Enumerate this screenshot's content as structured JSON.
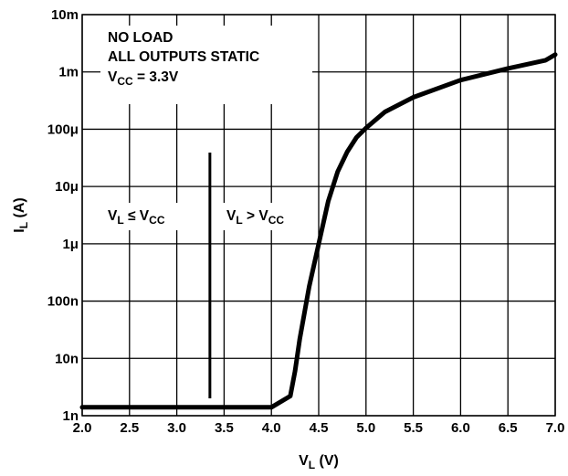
{
  "chart_data": {
    "type": "line",
    "title": "",
    "xlabel": {
      "main": "V",
      "sub": "L",
      "tail": " (V)"
    },
    "ylabel": {
      "main": "I",
      "sub": "L",
      "tail": " (A)"
    },
    "xlim": [
      2.0,
      7.0
    ],
    "ylim": [
      1e-09,
      0.01
    ],
    "y_scale": "log",
    "grid": true,
    "x_ticks": [
      "2.0",
      "2.5",
      "3.0",
      "3.5",
      "4.0",
      "4.5",
      "5.0",
      "5.5",
      "6.0",
      "6.5",
      "7.0"
    ],
    "y_ticks": [
      {
        "value": 1e-09,
        "label": "1n"
      },
      {
        "value": 1e-08,
        "label": "10n"
      },
      {
        "value": 1e-07,
        "label": "100n"
      },
      {
        "value": 1e-06,
        "label": "1μ"
      },
      {
        "value": 1e-05,
        "label": "10μ"
      },
      {
        "value": 0.0001,
        "label": "100μ"
      },
      {
        "value": 0.001,
        "label": "1m"
      },
      {
        "value": 0.01,
        "label": "10m"
      }
    ],
    "series": [
      {
        "color": "#000000",
        "x": [
          2.0,
          3.0,
          3.5,
          4.0,
          4.2,
          4.25,
          4.3,
          4.4,
          4.5,
          4.6,
          4.7,
          4.8,
          4.9,
          5.0,
          5.2,
          5.5,
          6.0,
          6.5,
          6.9,
          7.0
        ],
        "y": [
          1.4e-09,
          1.4e-09,
          1.4e-09,
          1.4e-09,
          2.2e-09,
          6e-09,
          2.2e-08,
          1.8e-07,
          1e-06,
          5.5e-06,
          1.8e-05,
          4e-05,
          7.2e-05,
          0.000105,
          0.0002,
          0.00036,
          0.00072,
          0.00115,
          0.0016,
          0.002
        ]
      }
    ],
    "annotations": {
      "conditions": {
        "line1": "NO LOAD",
        "line2": "ALL OUTPUTS STATIC",
        "line3_main": "V",
        "line3_sub": "CC",
        "line3_tail": " = 3.3V"
      },
      "region_left": {
        "main": "V",
        "sub1": "L",
        "mid": " ≤ V",
        "sub2": "CC"
      },
      "region_right": {
        "main": "V",
        "sub1": "L",
        "mid": " > V",
        "sub2": "CC"
      },
      "divider_x": 3.35
    }
  }
}
